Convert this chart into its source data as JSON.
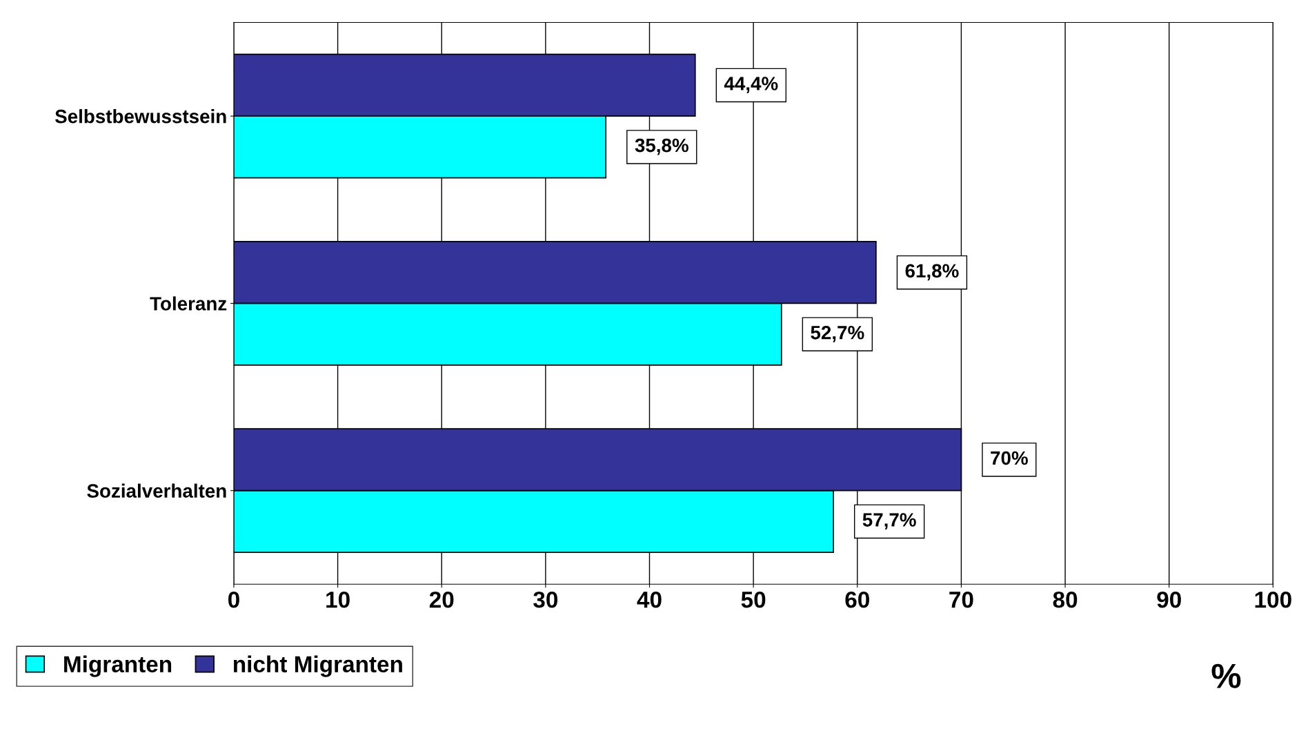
{
  "chart_data": {
    "type": "bar",
    "orientation": "horizontal",
    "categories": [
      "Selbstbewusstsein",
      "Toleranz",
      "Sozialverhalten"
    ],
    "series": [
      {
        "name": "Migranten",
        "color": "#00ffff",
        "values": [
          35.8,
          52.7,
          57.7
        ],
        "value_labels": [
          "35,8%",
          "52,7%",
          "57,7%"
        ]
      },
      {
        "name": "nicht Migranten",
        "color": "#333399",
        "values": [
          44.4,
          61.8,
          70
        ],
        "value_labels": [
          "44,4%",
          "61,8%",
          "70%"
        ]
      }
    ],
    "xlabel": "%",
    "xlim": [
      0,
      100
    ],
    "xticks": [
      0,
      10,
      20,
      30,
      40,
      50,
      60,
      70,
      80,
      90,
      100
    ],
    "grid": "x",
    "legend": "bottom left"
  }
}
